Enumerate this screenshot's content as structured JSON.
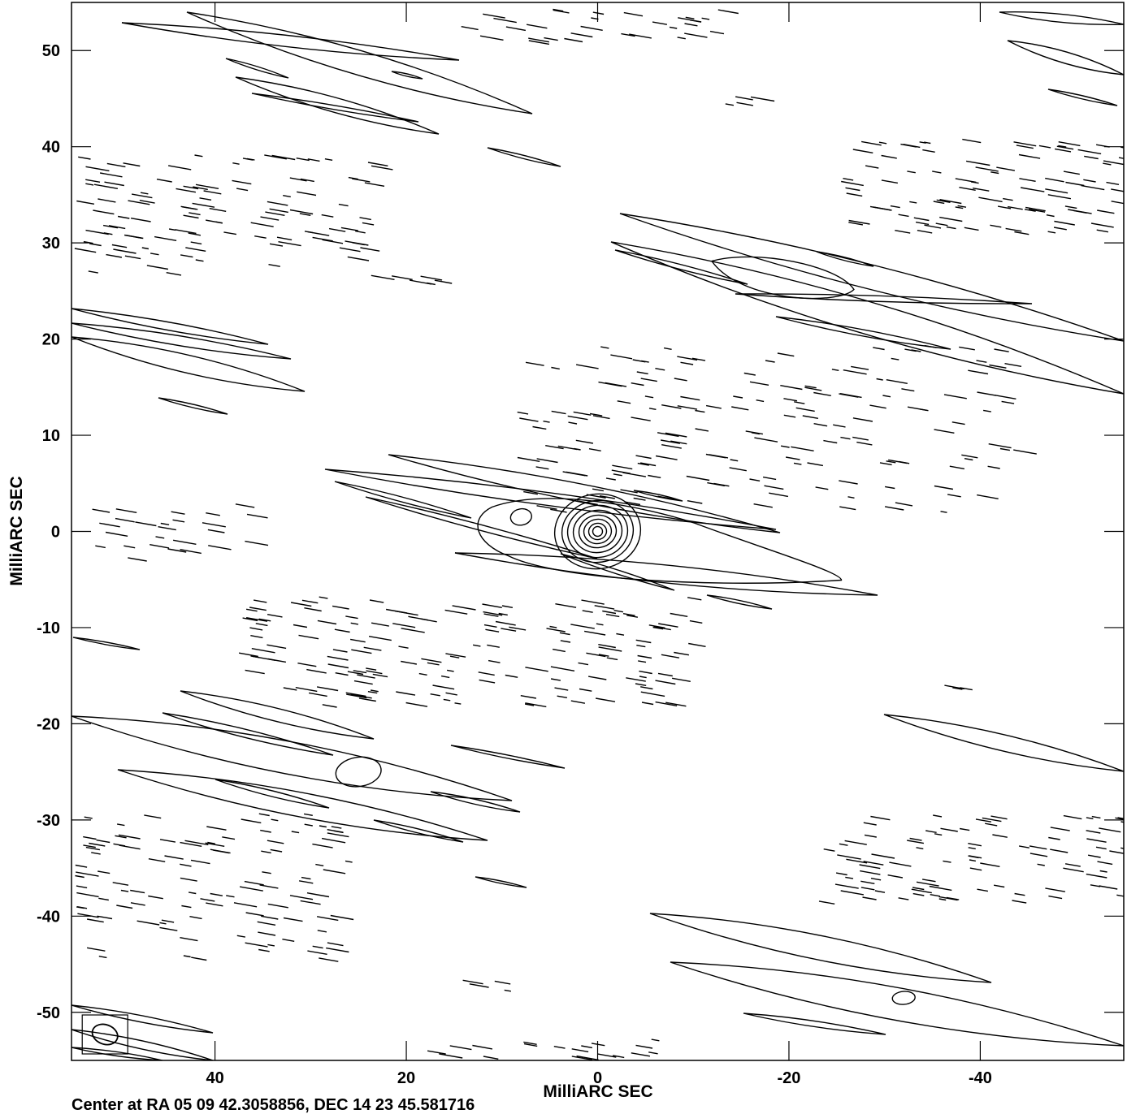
{
  "chart_data": {
    "type": "contour",
    "xlabel": "MilliARC SEC",
    "ylabel": "MilliARC SEC",
    "xlim": [
      55,
      -55
    ],
    "ylim": [
      -55,
      55
    ],
    "x_ticks": [
      40,
      20,
      0,
      -20,
      -40
    ],
    "y_ticks": [
      50,
      40,
      30,
      20,
      10,
      0,
      -10,
      -20,
      -30,
      -40,
      -50
    ],
    "x_tick_labels": [
      "40",
      "20",
      "0",
      "-20",
      "-40"
    ],
    "y_tick_labels": [
      "50",
      "40",
      "30",
      "20",
      "10",
      "0",
      "-10",
      "-20",
      "-30",
      "-40",
      "-50"
    ],
    "center_label": "Center at RA 05 09 42.3058856, DEC 14 23 45.581716",
    "peak": {
      "x": 0,
      "y": 0
    },
    "beam": {
      "x": 51.5,
      "y": -52.3
    },
    "positive_components": [
      {
        "x": 0,
        "y": 0,
        "levels": 8
      },
      {
        "x": 8,
        "y": 1.5,
        "levels": 1
      },
      {
        "x": 25,
        "y": -25,
        "levels": 1
      },
      {
        "x": -20,
        "y": 26,
        "levels": 1
      },
      {
        "x": -32,
        "y": -48.5,
        "levels": 1
      }
    ]
  },
  "axes": {
    "x_title": "MilliARC SEC",
    "y_title": "MilliARC SEC"
  },
  "footer": {
    "text": "Center at RA 05 09 42.3058856, DEC 14 23 45.581716"
  }
}
